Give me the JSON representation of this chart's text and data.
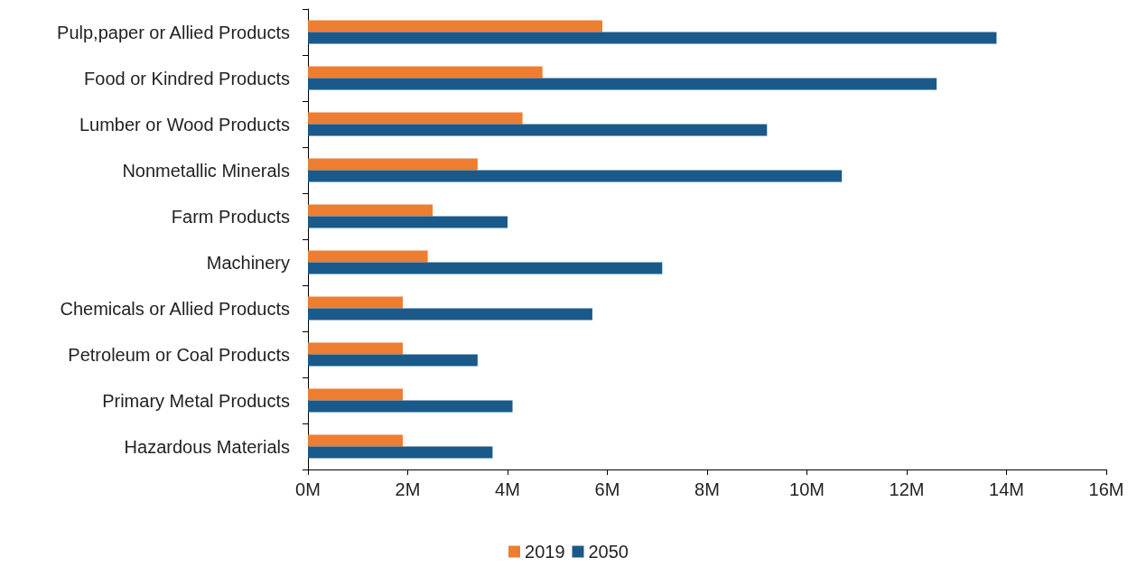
{
  "chart_data": {
    "type": "bar",
    "orientation": "horizontal",
    "categories": [
      "Pulp,paper or Allied Products",
      "Food or Kindred Products",
      "Lumber or Wood Products",
      "Nonmetallic Minerals",
      "Farm Products",
      "Machinery",
      "Chemicals or Allied Products",
      "Petroleum or Coal Products",
      "Primary Metal Products",
      "Hazardous Materials"
    ],
    "series": [
      {
        "name": "2019",
        "color": "#ed7d31",
        "values": [
          5.9,
          4.7,
          4.3,
          3.4,
          2.5,
          2.4,
          1.9,
          1.9,
          1.9,
          1.9
        ]
      },
      {
        "name": "2050",
        "color": "#1a5a8a",
        "values": [
          13.8,
          12.6,
          9.2,
          10.7,
          4.0,
          7.1,
          5.7,
          3.4,
          4.1,
          3.7
        ]
      }
    ],
    "xlim": [
      0,
      16
    ],
    "xticks": [
      {
        "value": 0,
        "label": "0M"
      },
      {
        "value": 2,
        "label": "2M"
      },
      {
        "value": 4,
        "label": "4M"
      },
      {
        "value": 6,
        "label": "6M"
      },
      {
        "value": 8,
        "label": "8M"
      },
      {
        "value": 10,
        "label": "10M"
      },
      {
        "value": 12,
        "label": "12M"
      },
      {
        "value": 14,
        "label": "14M"
      },
      {
        "value": 16,
        "label": "16M"
      }
    ],
    "grid": false,
    "legend": "bottom"
  }
}
